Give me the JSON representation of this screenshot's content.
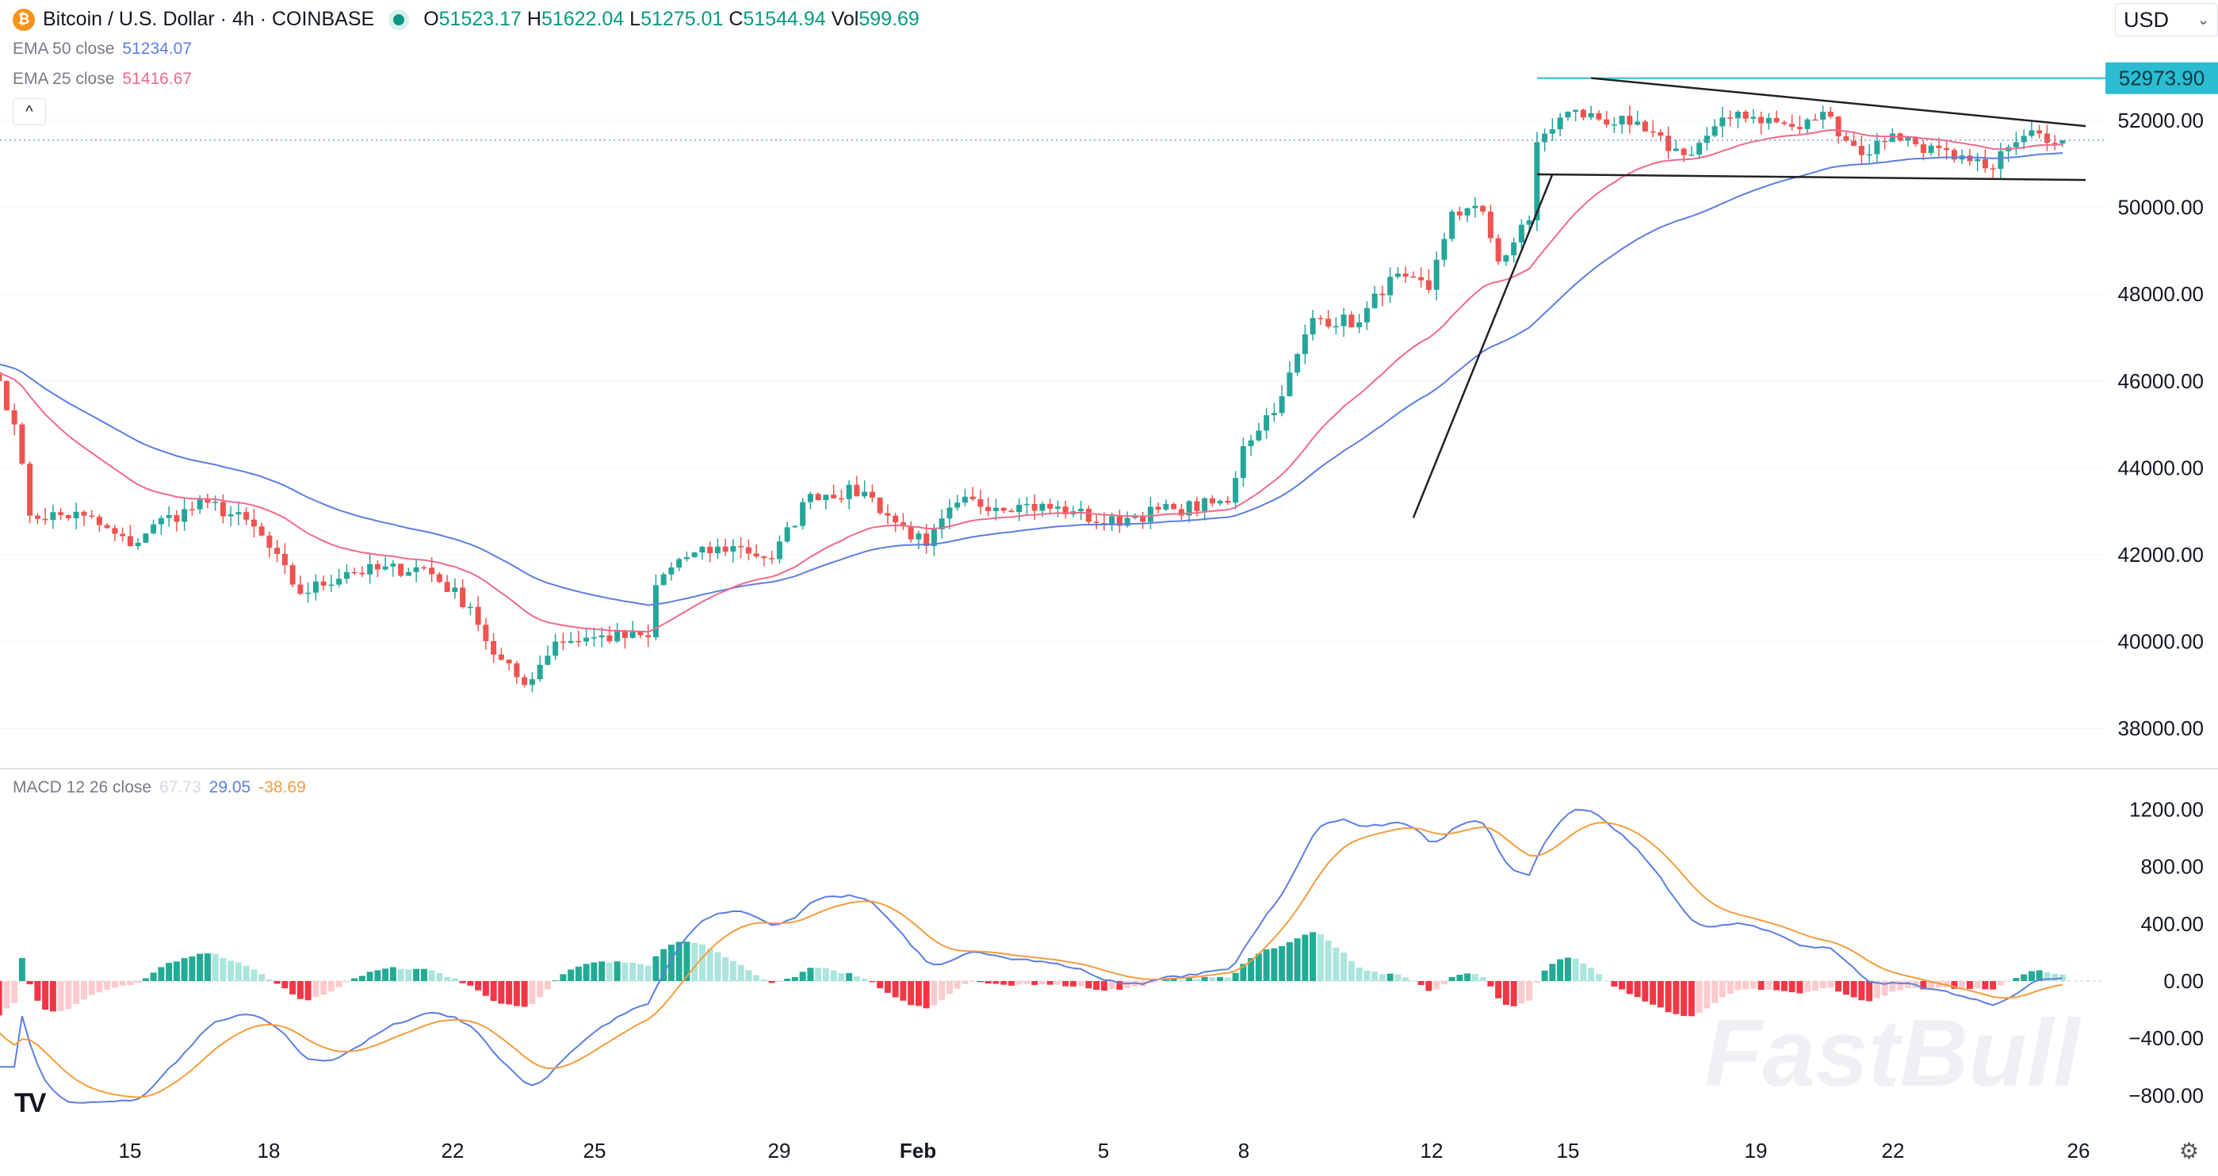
{
  "header": {
    "symbol_icon": "bitcoin-icon",
    "title": "Bitcoin / U.S. Dollar · 4h · COINBASE",
    "ohlc": {
      "o_label": "O",
      "o": "51523.17",
      "h_label": "H",
      "h": "51622.04",
      "l_label": "L",
      "l": "51275.01",
      "c_label": "C",
      "c": "51544.94",
      "vol_label": "Vol",
      "vol": "599.69"
    },
    "ema50": {
      "label": "EMA 50 close",
      "value": "51234.07"
    },
    "ema25": {
      "label": "EMA 25 close",
      "value": "51416.67"
    },
    "collapse_label": "^",
    "currency": "USD"
  },
  "macd_legend": {
    "label": "MACD 12 26 close",
    "hist": "67.73",
    "macd": "29.05",
    "signal": "-38.69"
  },
  "watermark": "FastBull",
  "colors": {
    "up": "#26a69a",
    "down": "#ef5350",
    "ema50": "#5b7fe0",
    "ema25": "#f06a8a",
    "macd": "#5b7fe0",
    "signal": "#f59c3c",
    "hline": "#2bbcd1",
    "trend": "#222222"
  },
  "chart_data": [
    {
      "type": "candlestick",
      "interval": "4h",
      "price_axis": {
        "ticks": [
          "52000.00",
          "50000.00",
          "48000.00",
          "46000.00",
          "44000.00",
          "42000.00",
          "40000.00",
          "38000.00"
        ],
        "range": [
          37600,
          53200
        ]
      },
      "time_axis": {
        "ticks": [
          "15",
          "18",
          "22",
          "25",
          "29",
          "Feb",
          "5",
          "8",
          "12",
          "15",
          "19",
          "22",
          "26"
        ]
      },
      "close_keypoints": [
        [
          "Jan 12 04:00",
          46000
        ],
        [
          "Jan 12 12:00",
          45000
        ],
        [
          "Jan 12 20:00",
          42900
        ],
        [
          "Jan 14 00:00",
          42900
        ],
        [
          "Jan 15 00:00",
          42200
        ],
        [
          "Jan 15 12:00",
          42700
        ],
        [
          "Jan 16 16:00",
          43200
        ],
        [
          "Jan 17 16:00",
          42650
        ],
        [
          "Jan 18 16:00",
          41100
        ],
        [
          "Jan 19 16:00",
          41600
        ],
        [
          "Jan 21 08:00",
          41700
        ],
        [
          "Jan 22 08:00",
          40800
        ],
        [
          "Jan 22 20:00",
          39700
        ],
        [
          "Jan 23 12:00",
          39000
        ],
        [
          "Jan 24 04:00",
          40000
        ],
        [
          "Jan 25 00:00",
          40100
        ],
        [
          "Jan 26 04:00",
          40100
        ],
        [
          "Jan 26 08:00",
          41300
        ],
        [
          "Jan 26 20:00",
          41900
        ],
        [
          "Jan 28 00:00",
          42200
        ],
        [
          "Jan 28 20:00",
          41900
        ],
        [
          "Jan 29 16:00",
          43400
        ],
        [
          "Jan 30 20:00",
          43450
        ],
        [
          "Jan 31 08:00",
          42900
        ],
        [
          "Feb 1 04:00",
          42200
        ],
        [
          "Feb 1 20:00",
          43200
        ],
        [
          "Feb 3 04:00",
          43150
        ],
        [
          "Feb 4 08:00",
          43000
        ],
        [
          "Feb 5 00:00",
          42700
        ],
        [
          "Feb 5 16:00",
          42900
        ],
        [
          "Feb 6 12:00",
          43050
        ],
        [
          "Feb 7 16:00",
          43200
        ],
        [
          "Feb 8 00:00",
          44500
        ],
        [
          "Feb 8 20:00",
          45650
        ],
        [
          "Feb 9 12:00",
          47450
        ],
        [
          "Feb 10 12:00",
          47350
        ],
        [
          "Feb 11 04:00",
          48400
        ],
        [
          "Feb 12 00:00",
          48100
        ],
        [
          "Feb 12 12:00",
          49900
        ],
        [
          "Feb 13 04:00",
          49900
        ],
        [
          "Feb 13 12:00",
          48750
        ],
        [
          "Feb 14 04:00",
          49700
        ],
        [
          "Feb 14 08:00",
          51500
        ],
        [
          "Feb 15 00:00",
          52200
        ],
        [
          "Feb 16 08:00",
          51900
        ],
        [
          "Feb 17 12:00",
          51200
        ],
        [
          "Feb 18 16:00",
          52200
        ],
        [
          "Feb 20 00:00",
          51800
        ],
        [
          "Feb 20 12:00",
          52200
        ],
        [
          "Feb 21 08:00",
          51200
        ],
        [
          "Feb 22 00:00",
          51700
        ],
        [
          "Feb 23 08:00",
          51100
        ],
        [
          "Feb 24 00:00",
          50900
        ],
        [
          "Feb 24 16:00",
          51500
        ],
        [
          "Feb 25 04:00",
          51700
        ],
        [
          "Feb 25 16:00",
          51545
        ]
      ],
      "indicators": [
        "EMA 50",
        "EMA 25"
      ],
      "horizontal_line": {
        "price": 52973.9,
        "label": "52973.90",
        "from": "Feb 14 08:00"
      },
      "current_price": 51544.94,
      "trendlines": [
        {
          "name": "upper",
          "from": [
            "Feb 15 12:00",
            52977
          ],
          "to": [
            "Feb 26 04:00",
            51870
          ]
        },
        {
          "name": "lower",
          "from": [
            "Feb 14 08:00",
            50760
          ],
          "to": [
            "Feb 26 04:00",
            50630
          ]
        },
        {
          "name": "rising",
          "from": [
            "Feb 11 16:00",
            42850
          ],
          "to": [
            "Feb 14 16:00",
            50760
          ]
        }
      ]
    },
    {
      "type": "macd",
      "params": [
        12,
        26,
        9
      ],
      "y_axis": {
        "ticks": [
          "1200.00",
          "800.00",
          "400.00",
          "0.00",
          "−400.00",
          "−800.00"
        ],
        "range": [
          -950,
          1400
        ]
      }
    }
  ]
}
